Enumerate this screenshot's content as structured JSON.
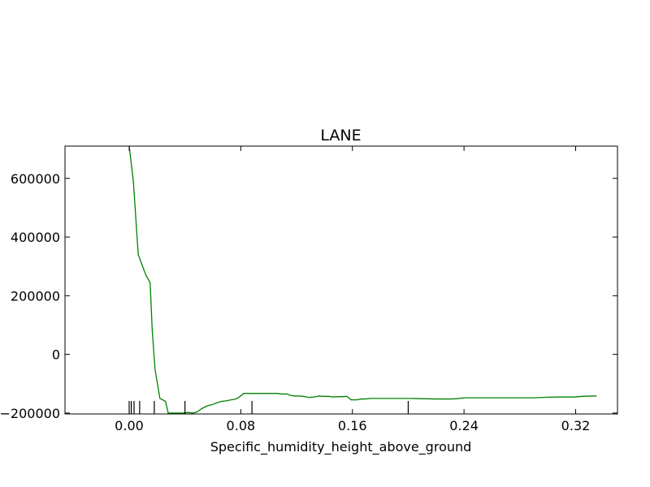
{
  "chart_data": {
    "type": "line",
    "title": "LANE",
    "xlabel": "Specific_humidity_height_above_ground",
    "ylabel": "",
    "xlim": [
      -0.046,
      0.35
    ],
    "ylim": [
      -203000,
      710000
    ],
    "x_ticks": [
      0.0,
      0.08,
      0.16,
      0.24,
      0.32
    ],
    "x_tick_labels": [
      "0.00",
      "0.08",
      "0.16",
      "0.24",
      "0.32"
    ],
    "y_ticks": [
      -200000,
      0,
      200000,
      400000,
      600000
    ],
    "y_tick_labels": [
      "−200000",
      "0",
      "200000",
      "400000",
      "600000"
    ],
    "grid": false,
    "legend": "none",
    "line_color": "#008000",
    "rug_color": "#000000",
    "series": [
      {
        "x": [
          0.0,
          0.003,
          0.0065,
          0.012,
          0.015,
          0.0165,
          0.0185,
          0.022,
          0.026,
          0.028,
          0.031,
          0.033,
          0.036,
          0.039,
          0.042,
          0.046,
          0.049,
          0.052,
          0.056,
          0.059,
          0.063,
          0.066,
          0.07,
          0.073,
          0.076,
          0.079,
          0.082,
          0.086,
          0.089,
          0.092,
          0.096,
          0.1,
          0.103,
          0.106,
          0.109,
          0.113,
          0.116,
          0.119,
          0.123,
          0.126,
          0.129,
          0.133,
          0.136,
          0.139,
          0.143,
          0.146,
          0.15,
          0.153,
          0.156,
          0.159,
          0.163,
          0.166,
          0.169,
          0.173,
          0.176,
          0.18,
          0.19,
          0.2,
          0.21,
          0.22,
          0.23,
          0.235,
          0.24,
          0.25,
          0.26,
          0.27,
          0.28,
          0.29,
          0.3,
          0.31,
          0.32,
          0.325,
          0.33,
          0.335
        ],
        "y": [
          710000,
          590000,
          340000,
          270000,
          245000,
          85000,
          -50000,
          -150000,
          -160000,
          -200000,
          -200000,
          -200000,
          -200000,
          -200000,
          -198000,
          -200000,
          -195000,
          -185000,
          -175000,
          -172000,
          -165000,
          -160000,
          -158000,
          -155000,
          -153000,
          -145000,
          -133000,
          -133000,
          -133000,
          -133000,
          -133000,
          -133000,
          -133000,
          -133000,
          -135000,
          -135000,
          -140000,
          -142000,
          -142000,
          -144000,
          -147000,
          -145000,
          -142000,
          -143000,
          -143000,
          -145000,
          -144000,
          -144000,
          -143000,
          -155000,
          -155000,
          -152000,
          -152000,
          -150000,
          -150000,
          -150000,
          -150000,
          -150000,
          -151000,
          -152000,
          -152000,
          -151000,
          -148000,
          -148000,
          -148000,
          -148000,
          -148000,
          -148000,
          -146000,
          -145000,
          -145000,
          -143000,
          -142000,
          -142000
        ]
      }
    ],
    "rug_x": [
      0.0,
      0.0015,
      0.0035,
      0.0075,
      0.018,
      0.04,
      0.088,
      0.2
    ]
  }
}
